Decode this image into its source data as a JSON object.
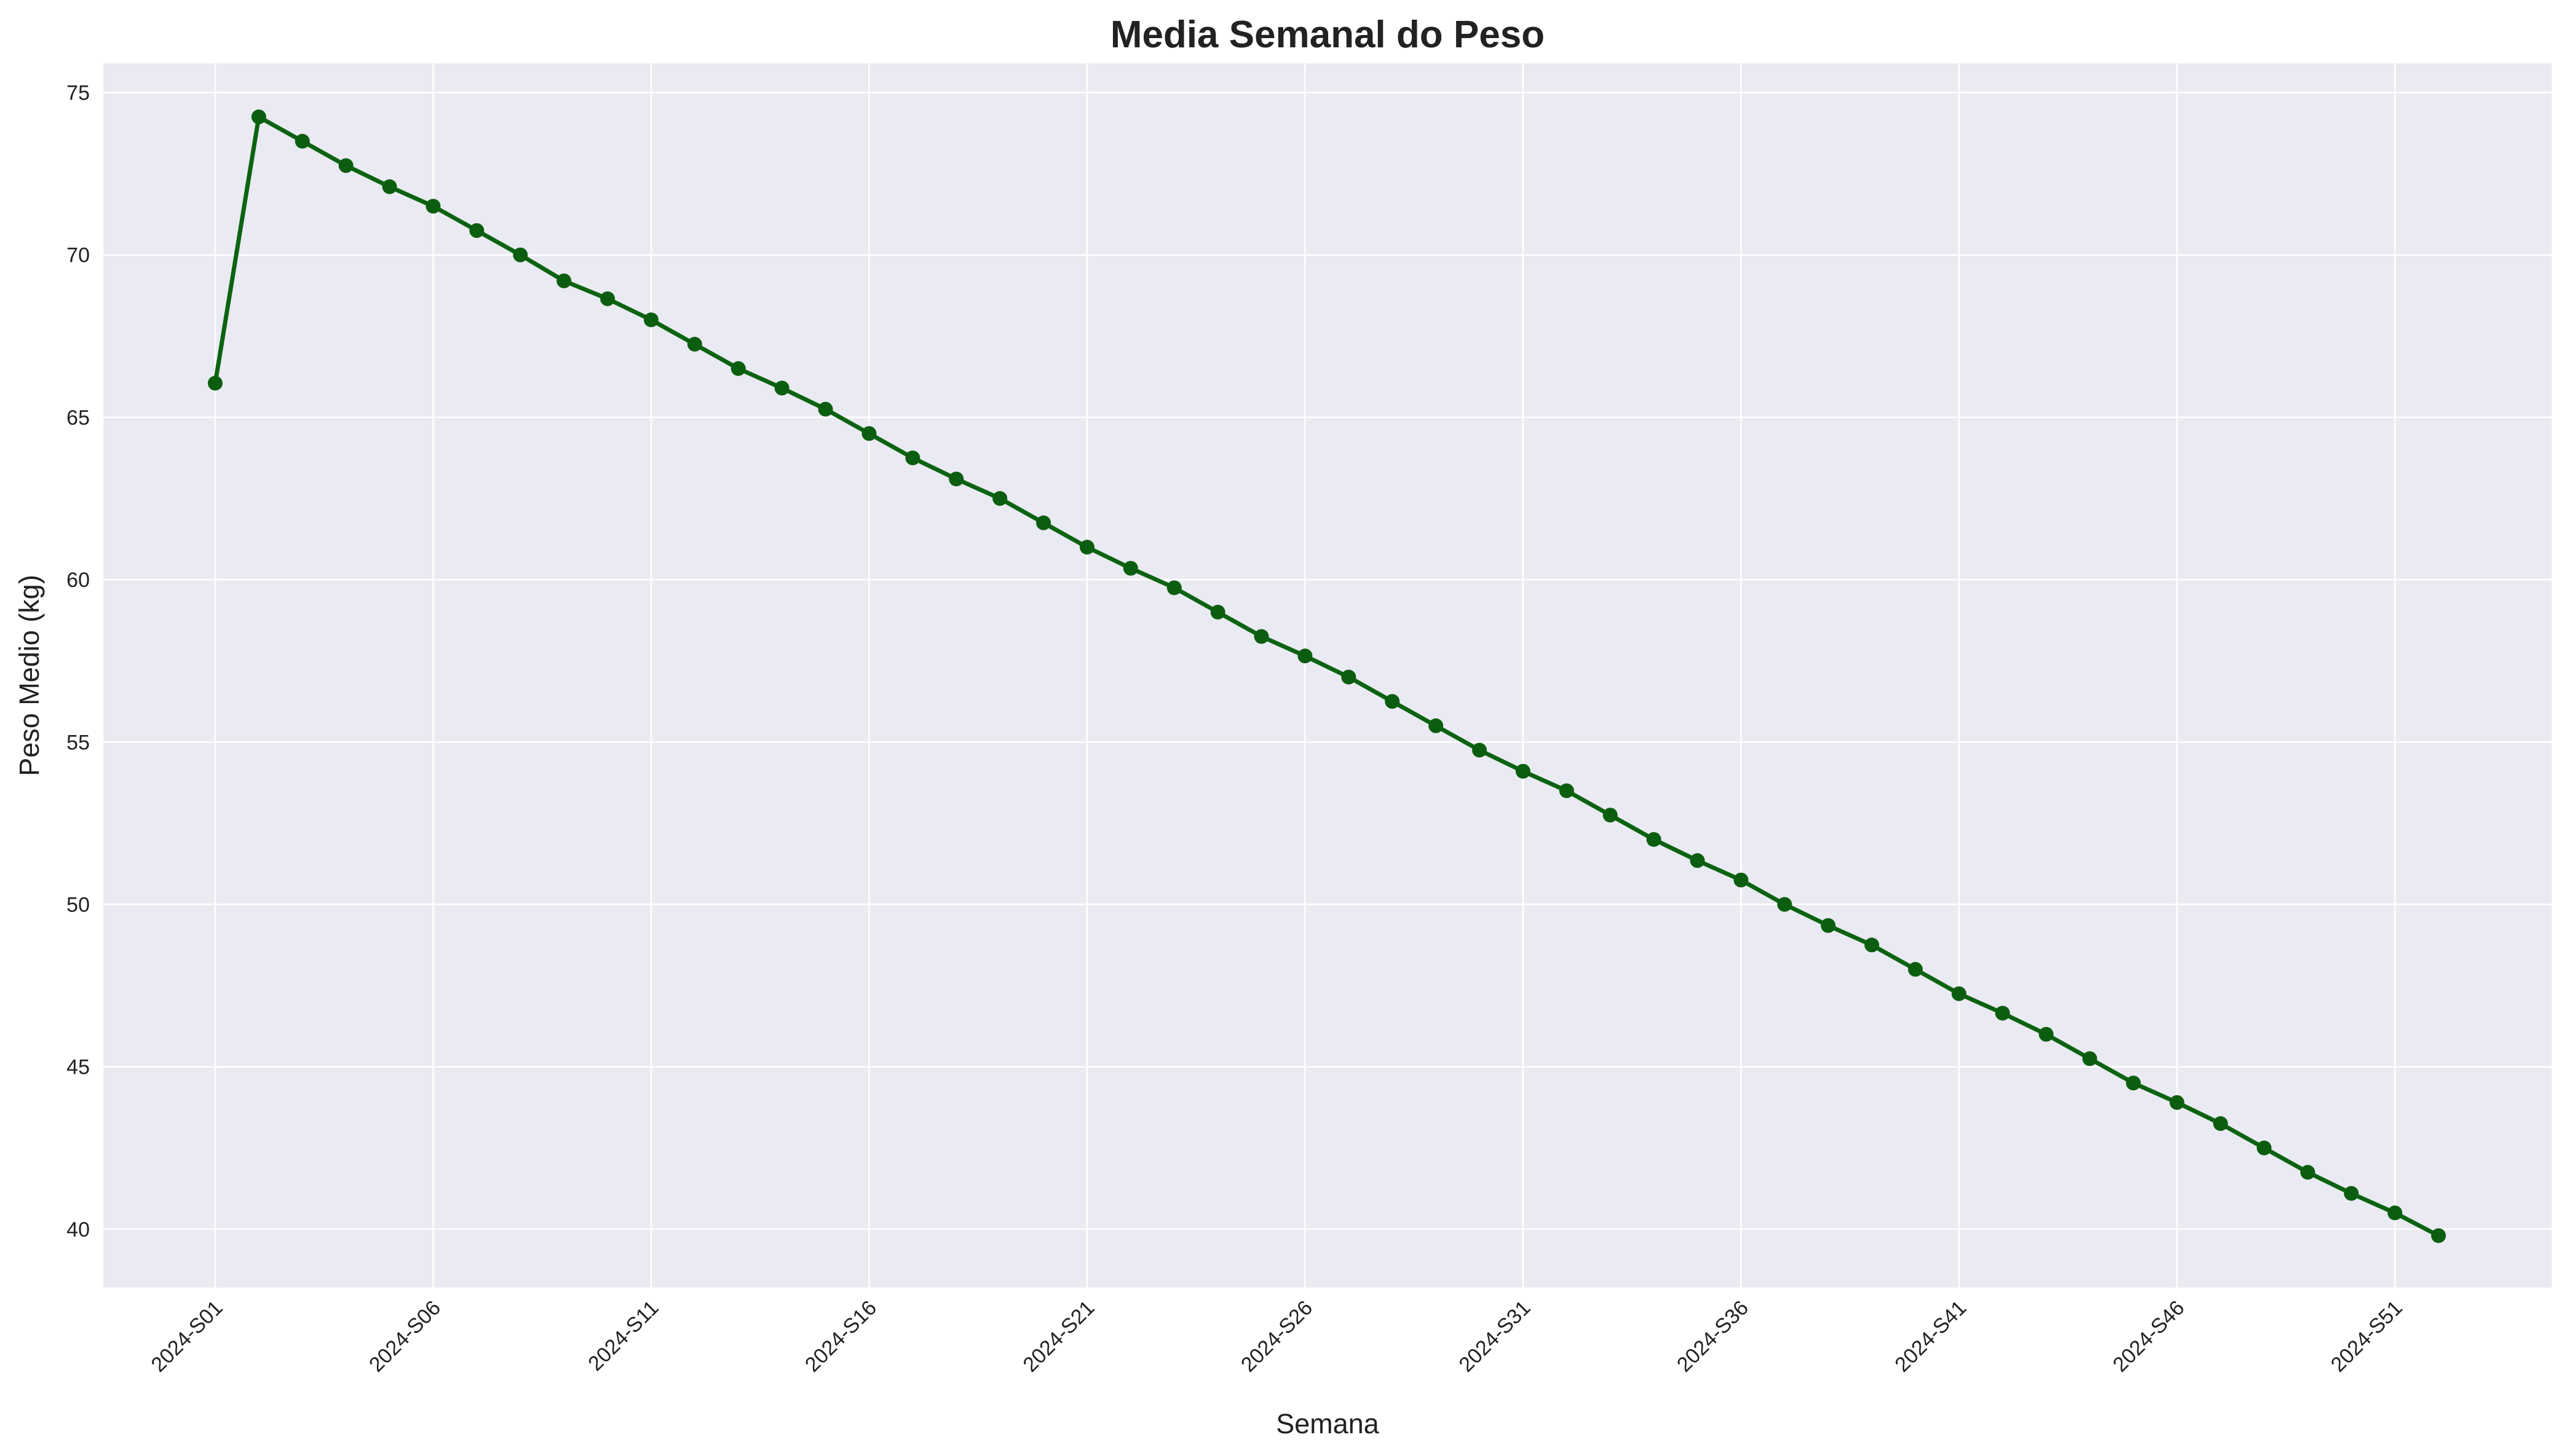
{
  "colors": {
    "background": "#ffffff",
    "plot_background": "#eaeaf2",
    "grid": "#ffffff",
    "line": "#0b6311",
    "marker": "#0b5e0f",
    "text": "#222222"
  },
  "chart_data": {
    "type": "line",
    "title": "Media Semanal do Peso",
    "xlabel": "Semana",
    "ylabel": "Peso Medio (kg)",
    "grid": true,
    "legend": "none",
    "marker": "circle",
    "ylim": [
      38.2,
      75.9
    ],
    "yticks": [
      40,
      45,
      50,
      55,
      60,
      65,
      70,
      75
    ],
    "xtick_labels": [
      "2024-S01",
      "2024-S06",
      "2024-S11",
      "2024-S16",
      "2024-S21",
      "2024-S26",
      "2024-S31",
      "2024-S36",
      "2024-S41",
      "2024-S46",
      "2024-S51"
    ],
    "xtick_indices": [
      0,
      5,
      10,
      15,
      20,
      25,
      30,
      35,
      40,
      45,
      50
    ],
    "x": [
      "2024-S01",
      "2024-S02",
      "2024-S03",
      "2024-S04",
      "2024-S05",
      "2024-S06",
      "2024-S07",
      "2024-S08",
      "2024-S09",
      "2024-S10",
      "2024-S11",
      "2024-S12",
      "2024-S13",
      "2024-S14",
      "2024-S15",
      "2024-S16",
      "2024-S17",
      "2024-S18",
      "2024-S19",
      "2024-S20",
      "2024-S21",
      "2024-S22",
      "2024-S23",
      "2024-S24",
      "2024-S25",
      "2024-S26",
      "2024-S27",
      "2024-S28",
      "2024-S29",
      "2024-S30",
      "2024-S31",
      "2024-S32",
      "2024-S33",
      "2024-S34",
      "2024-S35",
      "2024-S36",
      "2024-S37",
      "2024-S38",
      "2024-S39",
      "2024-S40",
      "2024-S41",
      "2024-S42",
      "2024-S43",
      "2024-S44",
      "2024-S45",
      "2024-S46",
      "2024-S47",
      "2024-S48",
      "2024-S49",
      "2024-S50",
      "2024-S51",
      "2024-S52"
    ],
    "values": [
      66.05,
      74.25,
      73.5,
      72.75,
      72.1,
      71.5,
      70.75,
      70.0,
      69.2,
      68.65,
      68.0,
      67.25,
      66.5,
      65.9,
      65.25,
      64.5,
      63.75,
      63.1,
      62.5,
      61.75,
      61.0,
      60.35,
      59.75,
      59.0,
      58.25,
      57.65,
      57.0,
      56.25,
      55.5,
      54.75,
      54.1,
      53.5,
      52.75,
      52.0,
      51.35,
      50.75,
      50.0,
      49.35,
      48.75,
      48.0,
      47.25,
      46.65,
      46.0,
      45.25,
      44.5,
      43.9,
      43.25,
      42.5,
      41.75,
      41.1,
      40.5,
      39.8
    ]
  }
}
